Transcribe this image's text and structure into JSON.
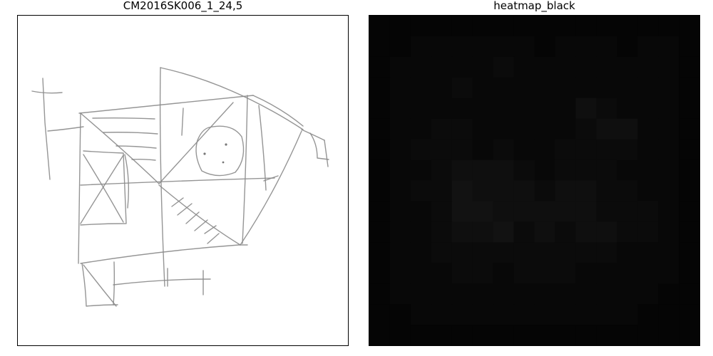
{
  "left_panel": {
    "title": "CM2016SK006_1_24,5"
  },
  "right_panel": {
    "title": "heatmap_black",
    "grid_size": 16,
    "base_color": "#050505",
    "cells": [
      [
        0,
        0,
        0,
        0,
        0,
        0,
        0,
        0,
        0,
        0,
        0,
        0,
        0,
        0,
        0,
        0
      ],
      [
        0,
        0,
        1,
        1,
        1,
        1,
        1,
        1,
        0,
        1,
        1,
        1,
        0,
        1,
        1,
        0
      ],
      [
        0,
        1,
        1,
        1,
        1,
        1,
        2,
        1,
        1,
        1,
        1,
        1,
        1,
        1,
        1,
        0
      ],
      [
        0,
        1,
        1,
        1,
        2,
        1,
        1,
        1,
        1,
        1,
        1,
        1,
        1,
        1,
        1,
        0
      ],
      [
        0,
        1,
        1,
        1,
        1,
        1,
        1,
        1,
        1,
        1,
        3,
        2,
        1,
        1,
        1,
        0
      ],
      [
        0,
        1,
        1,
        2,
        2,
        1,
        1,
        1,
        1,
        1,
        2,
        3,
        3,
        1,
        1,
        0
      ],
      [
        0,
        1,
        2,
        2,
        2,
        1,
        2,
        1,
        1,
        2,
        2,
        2,
        2,
        1,
        1,
        0
      ],
      [
        0,
        1,
        1,
        2,
        3,
        3,
        3,
        2,
        1,
        2,
        2,
        2,
        1,
        1,
        1,
        0
      ],
      [
        0,
        1,
        2,
        2,
        4,
        3,
        3,
        3,
        2,
        3,
        3,
        2,
        2,
        1,
        1,
        0
      ],
      [
        0,
        1,
        1,
        2,
        4,
        4,
        3,
        3,
        3,
        3,
        3,
        2,
        2,
        2,
        1,
        0
      ],
      [
        0,
        1,
        1,
        2,
        3,
        3,
        4,
        2,
        3,
        2,
        3,
        3,
        2,
        2,
        1,
        0
      ],
      [
        0,
        1,
        1,
        2,
        2,
        2,
        2,
        2,
        2,
        2,
        2,
        2,
        1,
        1,
        1,
        0
      ],
      [
        0,
        1,
        1,
        1,
        2,
        2,
        1,
        2,
        2,
        2,
        1,
        1,
        1,
        1,
        1,
        0
      ],
      [
        0,
        1,
        1,
        1,
        1,
        1,
        1,
        1,
        1,
        1,
        1,
        1,
        1,
        1,
        0,
        0
      ],
      [
        0,
        0,
        1,
        1,
        1,
        1,
        1,
        1,
        1,
        1,
        1,
        1,
        1,
        0,
        0,
        0
      ],
      [
        0,
        0,
        0,
        0,
        0,
        0,
        0,
        0,
        0,
        0,
        0,
        0,
        0,
        0,
        0,
        0
      ]
    ]
  }
}
